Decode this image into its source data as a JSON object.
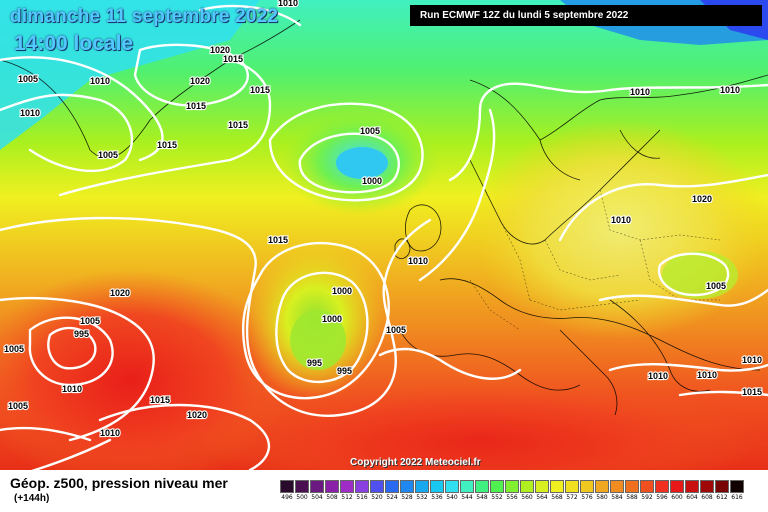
{
  "header": {
    "date_title": "dimanche 11 septembre 2022",
    "time_title": "14:00 locale",
    "run_info": "Run ECMWF 12Z du lundi 5 septembre 2022"
  },
  "copyright": "Copyright 2022 Meteociel.fr",
  "legend": {
    "title": "Géop. z500, pression niveau mer",
    "subtitle": "(+144h)",
    "scale_labels": [
      "496",
      "500",
      "504",
      "508",
      "512",
      "516",
      "520",
      "524",
      "528",
      "532",
      "536",
      "540",
      "544",
      "548",
      "552",
      "556",
      "560",
      "564",
      "568",
      "572",
      "576",
      "580",
      "584",
      "588",
      "592",
      "596",
      "600",
      "604",
      "608",
      "612",
      "616"
    ],
    "scale_colors": [
      "#2a0a2a",
      "#4a1050",
      "#6a1a80",
      "#8a20a8",
      "#a02cc8",
      "#8a40e0",
      "#5050f0",
      "#2a6af0",
      "#1e88f0",
      "#18a8f0",
      "#18c8f0",
      "#30e0f0",
      "#40f0c0",
      "#40f080",
      "#50f050",
      "#80f030",
      "#b0f020",
      "#d8f020",
      "#f0f020",
      "#f0e020",
      "#f0c820",
      "#f0a820",
      "#f08c20",
      "#f07020",
      "#f05020",
      "#f03020",
      "#e81818",
      "#c81010",
      "#a00808",
      "#780404",
      "#100000"
    ]
  },
  "isobars": [
    "1010",
    "1005",
    "1005",
    "1010",
    "1020",
    "1015",
    "1015",
    "1015",
    "1015",
    "1020",
    "1010",
    "1015",
    "1005",
    "1000",
    "1015",
    "1020",
    "1010",
    "1010",
    "1010",
    "1015",
    "1020",
    "1005",
    "1000",
    "1000",
    "1005",
    "995",
    "995",
    "1005",
    "995",
    "1005",
    "1010",
    "1020",
    "1010",
    "1010",
    "1005",
    "1010",
    "1010",
    "1010",
    "1015"
  ]
}
